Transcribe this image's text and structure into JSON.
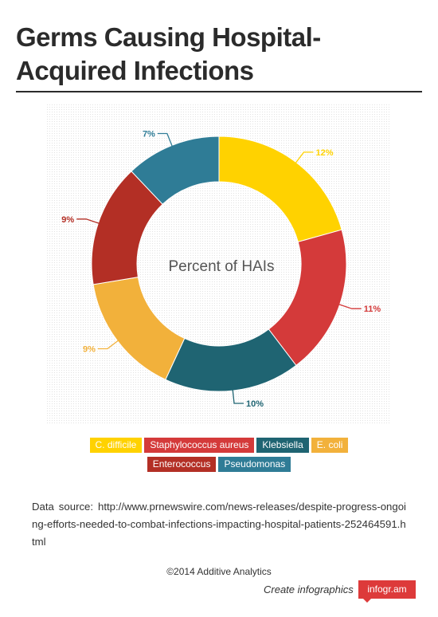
{
  "title": "Germs Causing Hospital-Acquired Infections",
  "colors": {
    "title_rule": "#2b2b2b",
    "badge": "#dd3a3a"
  },
  "chart_data": {
    "type": "pie",
    "variant": "donut",
    "center_label": "Percent of HAIs",
    "value_suffix": "%",
    "slices": [
      {
        "name": "C. difficile",
        "value": 12,
        "color": "#ffd200"
      },
      {
        "name": "Staphylococcus aureus",
        "value": 11,
        "color": "#d43a3a"
      },
      {
        "name": "Klebsiella",
        "value": 10,
        "color": "#1f6472"
      },
      {
        "name": "E. coli",
        "value": 9,
        "color": "#f2b13b"
      },
      {
        "name": "Enterococcus",
        "value": 9,
        "color": "#b32f25"
      },
      {
        "name": "Pseudomonas",
        "value": 7,
        "color": "#2f7c96"
      }
    ],
    "legend_rows": [
      [
        "C. difficile",
        "Staphylococcus aureus",
        "Klebsiella",
        "E. coli"
      ],
      [
        "Enterococcus",
        "Pseudomonas"
      ]
    ]
  },
  "source_text": "Data source: http://www.prnewswire.com/news-releases/despite-progress-ongoing-efforts-needed-to-combat-infections-impacting-hospital-patients-252464591.html",
  "copyright": "©2014 Additive Analytics",
  "footer": {
    "cta": "Create infographics",
    "brand": "infogr.am"
  }
}
